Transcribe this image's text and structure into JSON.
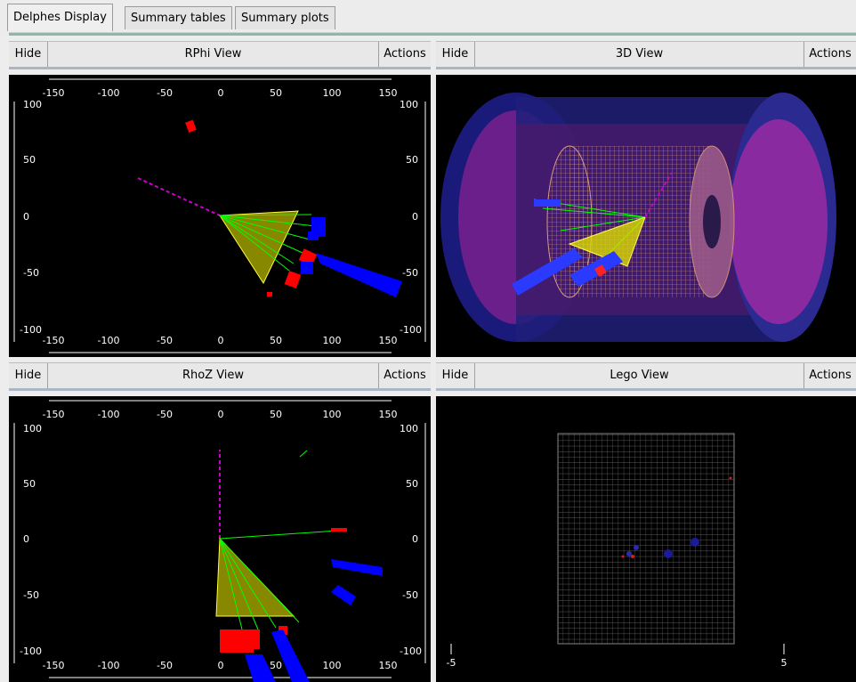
{
  "tabs": [
    {
      "label": "Delphes Display",
      "active": true
    },
    {
      "label": "Summary tables",
      "active": false
    },
    {
      "label": "Summary plots",
      "active": false
    }
  ],
  "views": {
    "rphi": {
      "hide": "Hide",
      "title": "RPhi View",
      "actions": "Actions"
    },
    "view3d": {
      "hide": "Hide",
      "title": "3D View",
      "actions": "Actions"
    },
    "rhoz": {
      "hide": "Hide",
      "title": "RhoZ View",
      "actions": "Actions"
    },
    "lego": {
      "hide": "Hide",
      "title": "Lego View",
      "actions": "Actions"
    }
  },
  "axes": {
    "x_ticks": [
      "-150",
      "-100",
      "-50",
      "0",
      "50",
      "100",
      "150"
    ],
    "y_ticks": [
      "100",
      "50",
      "0",
      "-50",
      "-100"
    ]
  },
  "lego_axis": {
    "ticks": [
      "-5",
      "5"
    ]
  },
  "colors": {
    "background": "#000000",
    "track": "#00ff00",
    "jet_cone": "#c9c92a",
    "ecal": "#ff0000",
    "hcal": "#0000ff",
    "met": "#cc00cc"
  }
}
